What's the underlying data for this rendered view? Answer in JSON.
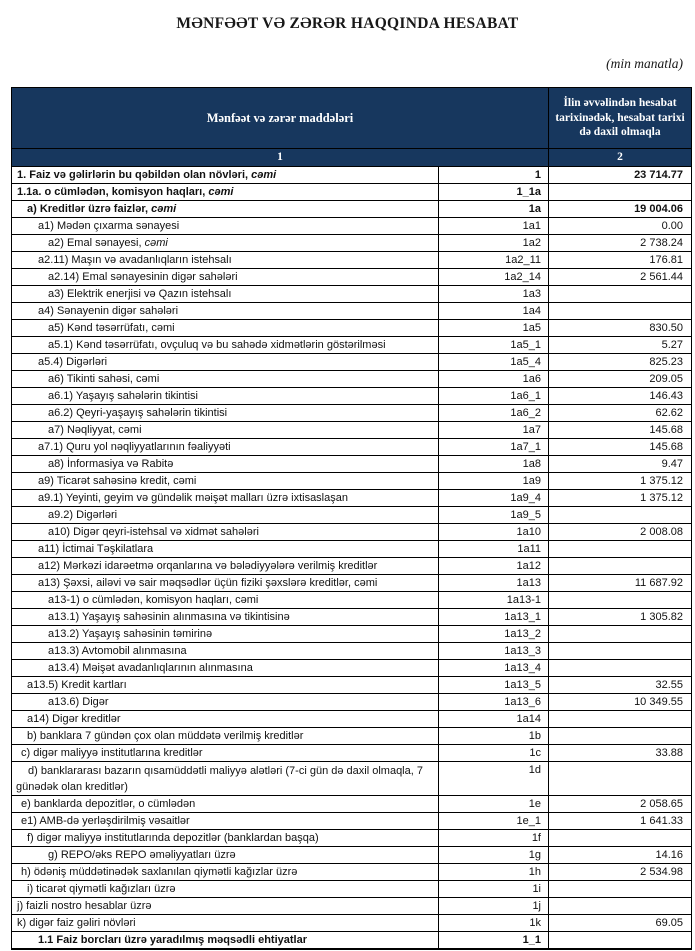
{
  "page": {
    "title": "MƏNFƏƏT VƏ ZƏRƏR HAQQINDA HESABAT",
    "unit_note": "(min manatla)"
  },
  "table": {
    "colors": {
      "header_bg": "#17375E",
      "header_text": "#FFFFFF",
      "border": "#000000"
    },
    "header": {
      "items_label": "Mənfəət və zərər maddələri",
      "value_label": "İlin əvvəlindən hesabat tarixinədək, hesabat tarixi də daxil olmaqla",
      "items_col_num": "1",
      "value_col_num": "2"
    },
    "rows": [
      {
        "label": "1. Faiz və gəlirlərin bu qəbildən olan növləri, ",
        "em": "cəmi",
        "code": "1",
        "value": "23 714.77",
        "indent": 0,
        "bold": true,
        "value_bold": true,
        "tall": false
      },
      {
        "label": "1.1a. o cümlədən, komisyon haqları, ",
        "em": "cəmi",
        "code": "1_1a",
        "value": "",
        "indent": 0,
        "bold": true,
        "value_bold": false,
        "tall": false
      },
      {
        "label": "a) Kreditlər üzrə faizlər, ",
        "em": "cəmi",
        "code": "1a",
        "value": "19 004.06",
        "indent": 2,
        "bold": true,
        "value_bold": true,
        "tall": false
      },
      {
        "label": "a1) Mədən çıxarma sənayesi",
        "em": "",
        "code": "1a1",
        "value": "0.00",
        "indent": 3,
        "bold": false,
        "value_bold": false,
        "tall": false
      },
      {
        "label": "a2) Emal sənayesi, ",
        "em": "cəmi",
        "code": "1a2",
        "value": "2 738.24",
        "indent": 4,
        "bold": false,
        "value_bold": false,
        "tall": false
      },
      {
        "label": "a2.11) Maşın və avadanlıqların istehsalı",
        "em": "",
        "code": "1a2_11",
        "value": "176.81",
        "indent": 3,
        "bold": false,
        "value_bold": false,
        "tall": false
      },
      {
        "label": "a2.14) Emal sənayesinin digər sahələri",
        "em": "",
        "code": "1a2_14",
        "value": "2 561.44",
        "indent": 4,
        "bold": false,
        "value_bold": false,
        "tall": false
      },
      {
        "label": "a3) Elektrik enerjisi və Qazın istehsalı",
        "em": "",
        "code": "1a3",
        "value": "",
        "indent": 4,
        "bold": false,
        "value_bold": false,
        "tall": false
      },
      {
        "label": "a4) Sənayenin digər sahələri",
        "em": "",
        "code": "1a4",
        "value": "",
        "indent": 3,
        "bold": false,
        "value_bold": false,
        "tall": false
      },
      {
        "label": "a5) Kənd təsərrüfatı, cəmi",
        "em": "",
        "code": "1a5",
        "value": "830.50",
        "indent": 4,
        "bold": false,
        "value_bold": false,
        "tall": false
      },
      {
        "label": "a5.1) Kənd təsərrüfatı, ovçuluq və bu sahədə xidmətlərin göstərilməsi",
        "em": "",
        "code": "1a5_1",
        "value": "5.27",
        "indent": 4,
        "bold": false,
        "value_bold": false,
        "tall": false
      },
      {
        "label": "a5.4) Digərləri",
        "em": "",
        "code": "1a5_4",
        "value": "825.23",
        "indent": 3,
        "bold": false,
        "value_bold": false,
        "tall": false
      },
      {
        "label": "a6) Tikinti sahəsi, cəmi",
        "em": "",
        "code": "1a6",
        "value": "209.05",
        "indent": 4,
        "bold": false,
        "value_bold": false,
        "tall": false
      },
      {
        "label": "a6.1) Yaşayış sahələrin tikintisi",
        "em": "",
        "code": "1a6_1",
        "value": "146.43",
        "indent": 4,
        "bold": false,
        "value_bold": false,
        "tall": false
      },
      {
        "label": "a6.2) Qeyri-yaşayış sahələrin tikintisi",
        "em": "",
        "code": "1a6_2",
        "value": "62.62",
        "indent": 4,
        "bold": false,
        "value_bold": false,
        "tall": false
      },
      {
        "label": "a7) Nəqliyyat, cəmi",
        "em": "",
        "code": "1a7",
        "value": "145.68",
        "indent": 4,
        "bold": false,
        "value_bold": false,
        "tall": false
      },
      {
        "label": "a7.1) Quru yol nəqliyyatlarının fəaliyyəti",
        "em": "",
        "code": "1a7_1",
        "value": "145.68",
        "indent": 3,
        "bold": false,
        "value_bold": false,
        "tall": false
      },
      {
        "label": "a8)  İnformasiya və Rabitə",
        "em": "",
        "code": "1a8",
        "value": "9.47",
        "indent": 4,
        "bold": false,
        "value_bold": false,
        "tall": false
      },
      {
        "label": "a9) Ticarət sahəsinə kredit, cəmi",
        "em": "",
        "code": "1a9",
        "value": "1 375.12",
        "indent": 3,
        "bold": false,
        "value_bold": false,
        "tall": false
      },
      {
        "label": "a9.1) Yeyinti, geyim və gündəlik məişət malları üzrə ixtisaslaşan",
        "em": "",
        "code": "1a9_4",
        "value": "1 375.12",
        "indent": 3,
        "bold": false,
        "value_bold": false,
        "tall": false
      },
      {
        "label": "a9.2) Digərləri",
        "em": "",
        "code": "1a9_5",
        "value": "",
        "indent": 4,
        "bold": false,
        "value_bold": false,
        "tall": false
      },
      {
        "label": "a10) Digər qeyri-istehsal və xidmət sahələri",
        "em": "",
        "code": "1a10",
        "value": "2 008.08",
        "indent": 4,
        "bold": false,
        "value_bold": false,
        "tall": false
      },
      {
        "label": "a11) İctimai Təşkilatlara",
        "em": "",
        "code": "1a11",
        "value": "",
        "indent": 3,
        "bold": false,
        "value_bold": false,
        "tall": false
      },
      {
        "label": "a12) Mərkəzi  idarəetmə orqanlarına və bələdiyyələrə verilmiş kreditlər",
        "em": "",
        "code": "1a12",
        "value": "",
        "indent": 3,
        "bold": false,
        "value_bold": false,
        "tall": false
      },
      {
        "label": "a13) Şəxsi, ailəvi və sair məqsədlər üçün fiziki şəxslərə kreditlər, cəmi",
        "em": "",
        "code": "1a13",
        "value": "11 687.92",
        "indent": 3,
        "bold": false,
        "value_bold": false,
        "tall": false
      },
      {
        "label": "a13-1) o cümlədən, komisyon haqları, cəmi",
        "em": "",
        "code": "1a13-1",
        "value": "",
        "indent": 4,
        "bold": false,
        "value_bold": false,
        "tall": false
      },
      {
        "label": "a13.1) Yaşayış sahəsinin alınmasına və tikintisinə",
        "em": "",
        "code": "1a13_1",
        "value": "1 305.82",
        "indent": 4,
        "bold": false,
        "value_bold": false,
        "tall": false
      },
      {
        "label": "a13.2) Yaşayış sahəsinin təmirinə",
        "em": "",
        "code": "1a13_2",
        "value": "",
        "indent": 4,
        "bold": false,
        "value_bold": false,
        "tall": false
      },
      {
        "label": "a13.3) Avtomobil alınmasına",
        "em": "",
        "code": "1a13_3",
        "value": "",
        "indent": 4,
        "bold": false,
        "value_bold": false,
        "tall": false
      },
      {
        "label": "a13.4) Məişət avadanlıqlarının alınmasına",
        "em": "",
        "code": "1a13_4",
        "value": "",
        "indent": 4,
        "bold": false,
        "value_bold": false,
        "tall": false
      },
      {
        "label": "a13.5) Kredit kartları",
        "em": "",
        "code": "1a13_5",
        "value": "32.55",
        "indent": 2,
        "bold": false,
        "value_bold": false,
        "tall": false
      },
      {
        "label": "a13.6) Digər",
        "em": "",
        "code": "1a13_6",
        "value": "10 349.55",
        "indent": 4,
        "bold": false,
        "value_bold": false,
        "tall": false
      },
      {
        "label": "a14) Digər kreditlər",
        "em": "",
        "code": "1a14",
        "value": "",
        "indent": 2,
        "bold": false,
        "value_bold": false,
        "tall": false
      },
      {
        "label": "b) banklara 7 gündən çox olan müddətə verilmiş kreditlər",
        "em": "",
        "code": "1b",
        "value": "",
        "indent": 2,
        "bold": false,
        "value_bold": false,
        "tall": false
      },
      {
        "label": "c) digər maliyyə institutlarına kreditlər",
        "em": "",
        "code": "1c",
        "value": "33.88",
        "indent": 1,
        "bold": false,
        "value_bold": false,
        "tall": false
      },
      {
        "label": "d) banklararası bazarın qısamüddətli maliyyə alətləri (7-ci gün də daxil olmaqla, 7 günədək olan kreditlər)",
        "em": "",
        "code": "1d",
        "value": "",
        "indent": "h",
        "bold": false,
        "value_bold": false,
        "tall": true
      },
      {
        "label": "e) banklarda depozitlər, o cümlədən",
        "em": "",
        "code": "1e",
        "value": "2 058.65",
        "indent": 1,
        "bold": false,
        "value_bold": false,
        "tall": false
      },
      {
        "label": "e1)  AMB-də yerləşdirilmiş vəsaitlər",
        "em": "",
        "code": "1e_1",
        "value": "1 641.33",
        "indent": 1,
        "bold": false,
        "value_bold": false,
        "tall": false
      },
      {
        "label": "f) digər maliyyə institutlarında depozitlər (banklardan başqa)",
        "em": "",
        "code": "1f",
        "value": "",
        "indent": 2,
        "bold": false,
        "value_bold": false,
        "tall": false
      },
      {
        "label": "g) REPO/əks REPO əməliyyatları üzrə",
        "em": "",
        "code": "1g",
        "value": "14.16",
        "indent": 4,
        "bold": false,
        "value_bold": false,
        "tall": false
      },
      {
        "label": "h) ödəniş müddətinədək saxlanılan qiymətli kağızlar üzrə",
        "em": "",
        "code": "1h",
        "value": "2 534.98",
        "indent": 1,
        "bold": false,
        "value_bold": false,
        "tall": false
      },
      {
        "label": "i) ticarət qiymətli kağızları üzrə",
        "em": "",
        "code": "1i",
        "value": "",
        "indent": 2,
        "bold": false,
        "value_bold": false,
        "tall": false
      },
      {
        "label": "j) faizli nostro hesablar üzrə",
        "em": "",
        "code": "1j",
        "value": "",
        "indent": 0,
        "bold": false,
        "value_bold": false,
        "tall": false
      },
      {
        "label": "k) digər faiz gəliri növləri",
        "em": "",
        "code": "1k",
        "value": "69.05",
        "indent": 0,
        "bold": false,
        "value_bold": false,
        "tall": false
      },
      {
        "label": "1.1 Faiz borcları üzrə yaradılmış məqsədli ehtiyatlar",
        "em": "",
        "code": "1_1",
        "value": "",
        "indent": 3,
        "bold": true,
        "value_bold": false,
        "tall": false
      }
    ]
  }
}
